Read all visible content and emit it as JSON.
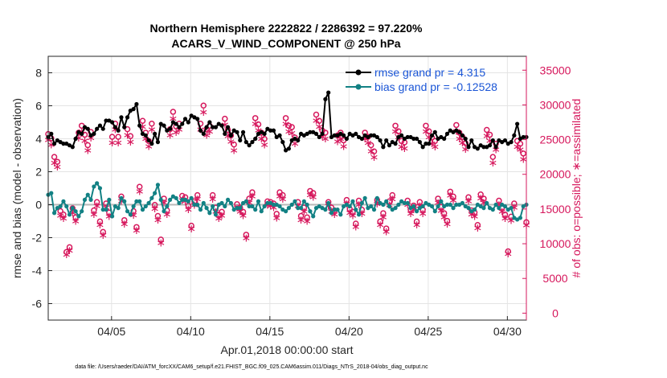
{
  "chart_data": {
    "type": "line",
    "title_line1": "Northern Hemisphere 2222822 / 2286392 = 97.220%",
    "title_line2": "ACARS_V_WIND_COMPONENT @ 250 hPa",
    "xlabel": "Apr.01,2018 00:00:00 start",
    "ylabel_left": "rmse and bias (model - observation)",
    "ylabel_right": "# of obs: o=possible; ∗=assimilated",
    "footnote": "data file: /Users/raeder/DAI/ATM_forcXX/CAM6_setup/f.e21.FHIST_BGC.f09_025.CAM6assim.011/Diags_NTrS_2018-04/obs_diag_output.nc",
    "xlim": [
      1.0,
      31.2
    ],
    "ylim_left": [
      -7,
      9
    ],
    "ylim_right": [
      -1000,
      37000
    ],
    "x_ticks": [
      5,
      10,
      15,
      20,
      25,
      30
    ],
    "x_tick_labels": [
      "04/05",
      "04/10",
      "04/15",
      "04/20",
      "04/25",
      "04/30"
    ],
    "y_left_ticks": [
      -6,
      -4,
      -2,
      0,
      2,
      4,
      6,
      8
    ],
    "y_left_tick_labels": [
      "-6",
      "-4",
      "-2",
      "0",
      "2",
      "4",
      "6",
      "8"
    ],
    "y_right_ticks": [
      0,
      5000,
      10000,
      15000,
      20000,
      25000,
      30000,
      35000
    ],
    "y_right_tick_labels": [
      "0",
      "5000",
      "10000",
      "15000",
      "20000",
      "25000",
      "30000",
      "35000"
    ],
    "grid": true,
    "legend_position": "top-right",
    "series": [
      {
        "name": "rmse",
        "label": "rmse grand pr = 4.315",
        "color": "#000000",
        "values": [
          4.1,
          4.3,
          3.7,
          3.9,
          3.8,
          3.7,
          3.7,
          3.6,
          3.5,
          4.0,
          4.4,
          4.3,
          4.7,
          4.6,
          4.2,
          4.3,
          4.6,
          4.8,
          4.6,
          5.1,
          5.1,
          5.0,
          4.7,
          4.5,
          5.3,
          4.7,
          5.3,
          5.7,
          5.8,
          6.1,
          4.8,
          4.3,
          4.2,
          3.9,
          3.7,
          4.3,
          3.8,
          4.9,
          4.8,
          4.5,
          4.6,
          5.0,
          4.9,
          4.7,
          4.9,
          5.2,
          5.0,
          5.4,
          5.3,
          5.2,
          4.5,
          4.3,
          4.7,
          5.0,
          4.7,
          4.7,
          4.9,
          4.8,
          4.3,
          4.7,
          4.2,
          4.5,
          4.4,
          3.9,
          4.4,
          3.8,
          3.6,
          3.8,
          4.0,
          4.3,
          4.4,
          4.3,
          4.6,
          4.5,
          4.5,
          4.1,
          4.2,
          3.8,
          3.3,
          3.4,
          3.9,
          4.0,
          3.9,
          4.3,
          4.2,
          4.3,
          4.4,
          4.4,
          4.3,
          4.1,
          4.3,
          6.4,
          6.8,
          4.1,
          4.2,
          4.2,
          4.3,
          4.2,
          4.0,
          4.3,
          4.2,
          4.3,
          4.1,
          4.0,
          4.2,
          4.1,
          4.2,
          4.2,
          4.1,
          3.9,
          3.5,
          3.9,
          3.6,
          3.8,
          3.7,
          4.1,
          4.2,
          4.0,
          4.1,
          4.1,
          4.0,
          4.0,
          3.8,
          3.5,
          3.7,
          3.7,
          4.2,
          4.4,
          4.0,
          4.1,
          4.0,
          4.3,
          4.5,
          4.4,
          4.5,
          4.4,
          4.2,
          4.0,
          3.5,
          3.9,
          3.5,
          3.4,
          3.6,
          3.5,
          3.5,
          3.6,
          3.9,
          3.5,
          3.9,
          3.8,
          3.9,
          3.7,
          3.8,
          4.2,
          4.9,
          4.0,
          4.1,
          4.1
        ]
      },
      {
        "name": "bias",
        "label": "bias grand pr = -0.12528",
        "color": "#128184",
        "values": [
          0.6,
          0.7,
          -0.5,
          -0.2,
          -0.1,
          0.2,
          -0.1,
          -0.6,
          -0.2,
          -0.4,
          -0.7,
          -0.4,
          0.3,
          0.6,
          0.3,
          1.1,
          1.3,
          1.0,
          -0.3,
          -0.3,
          0.3,
          -0.7,
          -0.1,
          -0.2,
          0.4,
          0.2,
          -0.4,
          -0.6,
          -0.1,
          0.2,
          0.2,
          -0.3,
          -0.1,
          0.1,
          0.4,
          0.7,
          1.2,
          0.3,
          -0.4,
          -0.1,
          0.3,
          0.5,
          0.4,
          0.1,
          0.3,
          0.3,
          0.2,
          0.4,
          0.0,
          0.0,
          -0.3,
          0.1,
          -0.2,
          -0.5,
          -0.1,
          -0.6,
          0.0,
          0.1,
          -0.1,
          0.3,
          0.1,
          -0.3,
          -0.2,
          -0.2,
          0.1,
          0.2,
          -0.1,
          -0.1,
          -0.3,
          0.2,
          -0.4,
          -0.1,
          0.1,
          0.1,
          0.0,
          0.0,
          -0.1,
          -0.3,
          -0.4,
          -0.2,
          0.0,
          0.2,
          -0.2,
          -0.2,
          0.2,
          0.0,
          -0.4,
          -0.7,
          -0.2,
          -0.1,
          -0.2,
          -0.3,
          0.1,
          -0.5,
          -0.3,
          -0.3,
          -0.6,
          -0.1,
          0.0,
          -0.1,
          0.2,
          -0.3,
          -0.6,
          0.1,
          0.4,
          -0.2,
          -0.1,
          -0.3,
          0.4,
          0.1,
          0.0,
          0.2,
          -0.1,
          -0.3,
          -0.2,
          0.0,
          0.2,
          0.1,
          0.1,
          -0.2,
          -0.1,
          -0.4,
          -0.2,
          -0.1,
          0.1,
          0.0,
          -0.1,
          -0.4,
          -0.1,
          0.2,
          -0.1,
          0.0,
          0.0,
          -0.2,
          0.0,
          0.0,
          0.1,
          -0.1,
          -0.2,
          -0.4,
          -0.3,
          0.0,
          -0.1,
          -0.2,
          0.1,
          -0.2,
          -0.3,
          0.0,
          -0.2,
          0.0,
          -0.1,
          -0.3,
          -0.2,
          -0.8,
          -0.9,
          -0.8,
          -0.1,
          0.0
        ]
      },
      {
        "name": "obs_possible",
        "label": "possible",
        "color": "#d6175c",
        "marker": "o",
        "values": [
          25800,
          25200,
          22500,
          21800,
          14700,
          14200,
          8800,
          9500,
          15100,
          13800,
          26000,
          27000,
          25700,
          24200,
          26100,
          14800,
          16000,
          13200,
          11700,
          15800,
          14500,
          25400,
          27300,
          25400,
          16800,
          13400,
          26500,
          25500,
          14700,
          12400,
          18200,
          27700,
          26000,
          24800,
          27300,
          15600,
          14000,
          10600,
          16500,
          14800,
          26500,
          29000,
          26900,
          27300,
          16900,
          16700,
          15500,
          12600,
          16100,
          17000,
          27300,
          29900,
          26500,
          27000,
          17000,
          15200,
          14200,
          14600,
          28000,
          26400,
          25600,
          24300,
          15700,
          15200,
          14600,
          11300,
          16500,
          17400,
          28100,
          27200,
          26000,
          25100,
          16100,
          16000,
          15800,
          14300,
          17400,
          17000,
          28100,
          27000,
          26800,
          25300,
          16000,
          14000,
          15200,
          13800,
          17600,
          17300,
          28600,
          27700,
          26300,
          26000,
          16000,
          15200,
          14800,
          25600,
          26000,
          24900,
          16300,
          15000,
          14600,
          12900,
          16200,
          14900,
          26000,
          25400,
          24200,
          23300,
          16300,
          13200,
          14400,
          12200,
          16100,
          17000,
          27000,
          26200,
          24800,
          24600,
          16200,
          14900,
          15500,
          13200,
          16000,
          14900,
          27000,
          26200,
          25300,
          24800,
          16500,
          15300,
          14400,
          13300,
          17500,
          16800,
          27100,
          26000,
          25400,
          24500,
          16700,
          14800,
          14500,
          12700,
          17100,
          16500,
          26400,
          25700,
          22500,
          24400,
          16200,
          15200,
          14200,
          8900,
          13900,
          15800,
          24800,
          24400,
          23000,
          13100
        ]
      },
      {
        "name": "obs_assimilated",
        "label": "assimilated",
        "color": "#d6175c",
        "marker": "*",
        "values": [
          25000,
          24300,
          21700,
          21100,
          14100,
          13700,
          8500,
          9100,
          14500,
          13300,
          25300,
          26200,
          24900,
          23500,
          25300,
          14300,
          15500,
          12800,
          11300,
          15300,
          14000,
          24600,
          26500,
          24600,
          16200,
          12900,
          25700,
          24700,
          14200,
          12000,
          17600,
          26900,
          25200,
          24100,
          26500,
          15100,
          13500,
          10200,
          16000,
          14300,
          25700,
          28100,
          26100,
          26500,
          16300,
          16200,
          15000,
          12200,
          15600,
          16500,
          26500,
          29000,
          25700,
          26200,
          16500,
          14700,
          13700,
          14100,
          27200,
          25600,
          24800,
          23500,
          15200,
          14700,
          14100,
          10900,
          16000,
          16900,
          27300,
          26400,
          25200,
          24300,
          15600,
          15500,
          15300,
          13800,
          16900,
          16500,
          27300,
          26200,
          26000,
          24500,
          15500,
          13500,
          14700,
          13300,
          17100,
          16800,
          27800,
          26900,
          25500,
          25200,
          15500,
          14700,
          14300,
          24800,
          25200,
          24100,
          15800,
          14500,
          14100,
          12500,
          15700,
          14400,
          25200,
          24600,
          23400,
          22500,
          15800,
          12800,
          13900,
          11800,
          15600,
          16500,
          26200,
          25400,
          24000,
          23800,
          15700,
          14400,
          15000,
          12800,
          15500,
          14400,
          26200,
          25400,
          24500,
          24000,
          16000,
          14800,
          13900,
          12900,
          17000,
          16300,
          26300,
          25200,
          24600,
          23700,
          16200,
          14300,
          14000,
          12300,
          16600,
          16000,
          25600,
          24900,
          21700,
          23600,
          15700,
          14700,
          13700,
          8600,
          13400,
          15300,
          24000,
          23600,
          22200,
          12700
        ]
      }
    ]
  }
}
